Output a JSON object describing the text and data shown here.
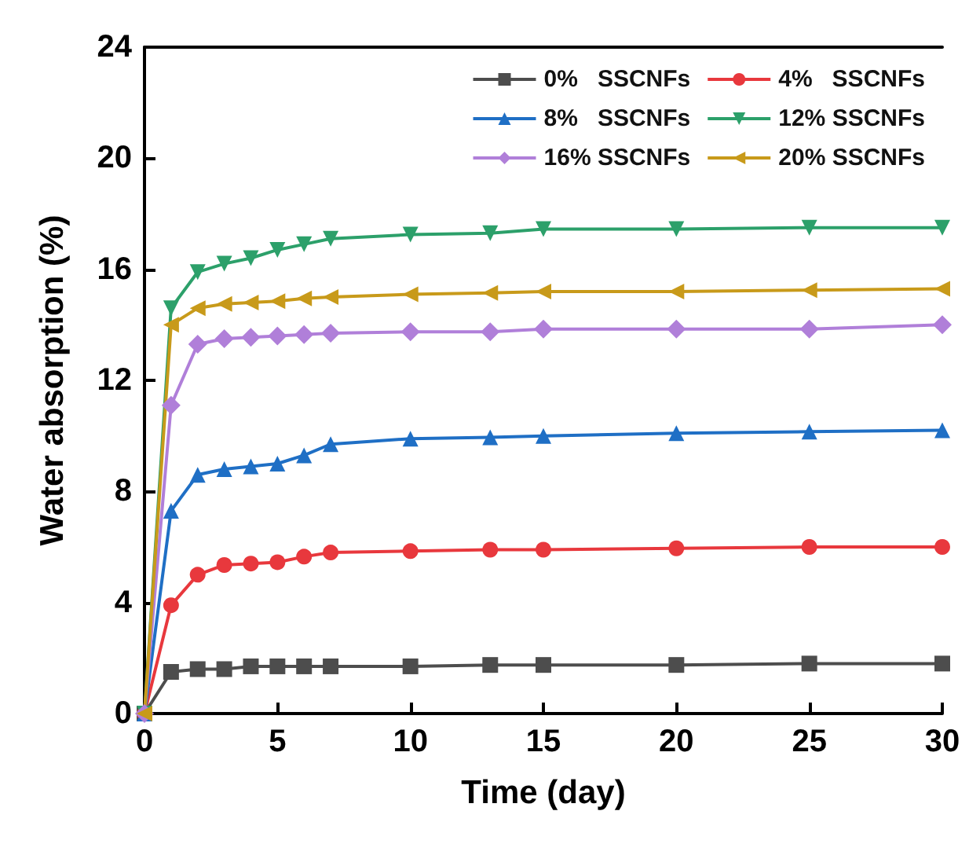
{
  "chart_data": {
    "type": "line",
    "xlabel": "Time (day)",
    "ylabel": "Water absorption (%)",
    "x": [
      0,
      1,
      2,
      3,
      4,
      5,
      6,
      7,
      10,
      13,
      15,
      20,
      25,
      30
    ],
    "xlim": [
      0,
      30
    ],
    "xticks": [
      0,
      5,
      10,
      15,
      20,
      25,
      30
    ],
    "ylim": [
      0,
      24
    ],
    "yticks": [
      0,
      4,
      8,
      12,
      16,
      20,
      24
    ],
    "grid": false,
    "legend": "top right",
    "line_style": "solid",
    "series": [
      {
        "name": "0%   SSCNFs",
        "color": "#4d4d4d",
        "marker": "square",
        "values": [
          0,
          1.5,
          1.6,
          1.6,
          1.7,
          1.7,
          1.7,
          1.7,
          1.7,
          1.75,
          1.75,
          1.75,
          1.8,
          1.8
        ]
      },
      {
        "name": "4%   SSCNFs",
        "color": "#e8383d",
        "marker": "circle",
        "values": [
          0,
          3.9,
          5.0,
          5.35,
          5.4,
          5.45,
          5.65,
          5.8,
          5.85,
          5.9,
          5.9,
          5.95,
          6.0,
          6.0
        ]
      },
      {
        "name": "8%   SSCNFs",
        "color": "#1f6fc5",
        "marker": "triangle",
        "values": [
          0,
          7.3,
          8.6,
          8.8,
          8.9,
          9.0,
          9.3,
          9.7,
          9.9,
          9.95,
          10.0,
          10.1,
          10.15,
          10.2
        ]
      },
      {
        "name": "12% SSCNFs",
        "color": "#2ca06a",
        "marker": "triangle-down",
        "values": [
          0,
          14.6,
          15.9,
          16.2,
          16.4,
          16.7,
          16.9,
          17.1,
          17.25,
          17.3,
          17.45,
          17.45,
          17.5,
          17.5
        ]
      },
      {
        "name": "16% SSCNFs",
        "color": "#b07fd9",
        "marker": "diamond",
        "values": [
          0,
          11.1,
          13.3,
          13.5,
          13.55,
          13.6,
          13.65,
          13.7,
          13.75,
          13.75,
          13.85,
          13.85,
          13.85,
          14.0
        ]
      },
      {
        "name": "20% SSCNFs",
        "color": "#c89a1a",
        "marker": "triangle-left",
        "values": [
          0,
          14.0,
          14.6,
          14.75,
          14.8,
          14.85,
          14.95,
          15.0,
          15.1,
          15.15,
          15.2,
          15.2,
          15.25,
          15.3
        ]
      }
    ]
  }
}
